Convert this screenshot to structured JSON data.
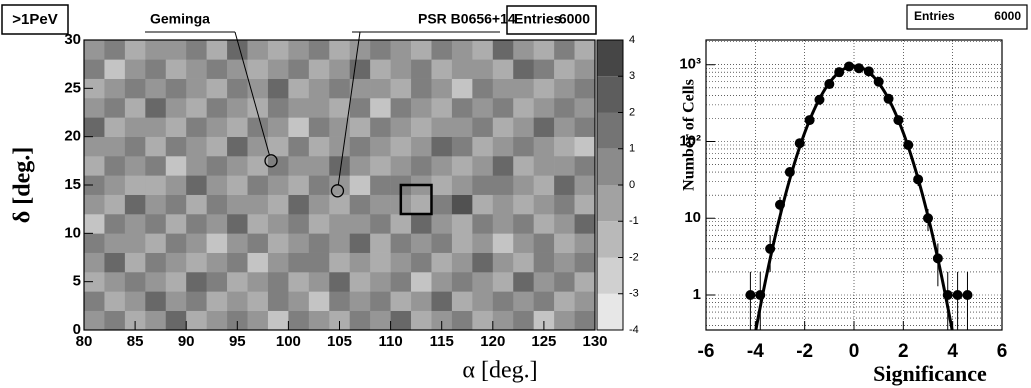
{
  "chart_data": [
    {
      "type": "heatmap",
      "label": ">1PeV",
      "stats": {
        "label": "Entries",
        "value": 6000
      },
      "xlabel": "α [deg.]",
      "ylabel": "δ [deg.]",
      "xlim": [
        80,
        130
      ],
      "xticks": [
        80,
        85,
        90,
        95,
        100,
        105,
        110,
        115,
        120,
        125,
        130
      ],
      "ylim": [
        0,
        30
      ],
      "yticks": [
        0,
        5,
        10,
        15,
        20,
        25,
        30
      ],
      "zlim": [
        -4,
        4
      ],
      "zticks": [
        -4,
        -3,
        -2,
        -1,
        0,
        1,
        2,
        3,
        4
      ],
      "colors": {
        "low": "#f2f2f2",
        "high": "#3a3a3a"
      },
      "annotations": [
        {
          "text": "Geminga",
          "x": 98.3,
          "y": 17.5
        },
        {
          "text": "PSR B0656+14",
          "x": 104.8,
          "y": 14.4
        }
      ],
      "region": {
        "x": [
          111,
          114
        ],
        "y": [
          12,
          15
        ]
      },
      "z": [
        [
          0,
          1,
          -1,
          0,
          2,
          -1,
          0,
          1,
          0,
          -2,
          1,
          0,
          -1,
          1,
          0,
          2,
          -1,
          0,
          1,
          -1,
          0,
          1,
          -2,
          0,
          1
        ],
        [
          1,
          -1,
          0,
          2,
          0,
          1,
          -1,
          0,
          -1,
          1,
          0,
          -2,
          1,
          0,
          1,
          -1,
          0,
          2,
          -1,
          0,
          1,
          0,
          1,
          -1,
          0
        ],
        [
          -1,
          0,
          1,
          0,
          -1,
          2,
          1,
          -1,
          0,
          1,
          -1,
          0,
          2,
          -1,
          0,
          1,
          -2,
          0,
          1,
          0,
          -1,
          2,
          0,
          1,
          -1
        ],
        [
          0,
          2,
          -1,
          1,
          0,
          -1,
          0,
          1,
          -2,
          0,
          1,
          1,
          -1,
          0,
          -1,
          0,
          1,
          -1,
          0,
          2,
          0,
          -1,
          1,
          0,
          1
        ],
        [
          1,
          0,
          0,
          -1,
          1,
          0,
          -2,
          0,
          1,
          -1,
          0,
          1,
          0,
          2,
          -1,
          1,
          0,
          1,
          -1,
          0,
          -2,
          0,
          1,
          -1,
          0
        ],
        [
          -2,
          1,
          0,
          1,
          -1,
          1,
          0,
          2,
          -1,
          0,
          1,
          -1,
          0,
          0,
          1,
          -1,
          2,
          0,
          -1,
          1,
          0,
          1,
          -1,
          0,
          2
        ],
        [
          0,
          -1,
          2,
          0,
          1,
          -1,
          1,
          0,
          0,
          -1,
          2,
          0,
          -1,
          1,
          0,
          0,
          -1,
          1,
          3,
          -1,
          0,
          -1,
          0,
          1,
          -1
        ],
        [
          1,
          0,
          -1,
          -1,
          0,
          2,
          0,
          -1,
          1,
          0,
          -1,
          1,
          0,
          -2,
          1,
          1,
          0,
          -1,
          0,
          1,
          1,
          0,
          -1,
          2,
          0
        ],
        [
          -1,
          1,
          0,
          1,
          -2,
          0,
          1,
          0,
          -1,
          1,
          0,
          0,
          2,
          0,
          -1,
          0,
          1,
          0,
          -1,
          0,
          2,
          -1,
          0,
          0,
          1
        ],
        [
          0,
          0,
          1,
          -1,
          1,
          0,
          -1,
          2,
          0,
          -1,
          1,
          -1,
          0,
          1,
          0,
          -1,
          0,
          2,
          1,
          -1,
          0,
          1,
          0,
          -1,
          -2
        ],
        [
          2,
          -1,
          0,
          0,
          -1,
          1,
          0,
          -1,
          1,
          0,
          -2,
          1,
          0,
          -1,
          1,
          0,
          -1,
          0,
          0,
          1,
          -1,
          0,
          2,
          0,
          1
        ],
        [
          0,
          1,
          -1,
          2,
          0,
          -1,
          1,
          0,
          -1,
          1,
          0,
          0,
          -1,
          1,
          -2,
          1,
          0,
          -1,
          1,
          0,
          1,
          -1,
          0,
          1,
          0
        ],
        [
          -1,
          0,
          1,
          0,
          1,
          0,
          -1,
          1,
          0,
          2,
          -1,
          0,
          1,
          0,
          0,
          -1,
          1,
          0,
          -2,
          1,
          0,
          0,
          -1,
          0,
          1
        ],
        [
          1,
          -2,
          0,
          1,
          -1,
          0,
          1,
          0,
          -1,
          0,
          1,
          -1,
          0,
          2,
          -1,
          0,
          1,
          -1,
          0,
          0,
          -1,
          2,
          1,
          -1,
          0
        ],
        [
          0,
          1,
          -1,
          0,
          0,
          1,
          -1,
          2,
          0,
          -1,
          0,
          1,
          -1,
          0,
          1,
          0,
          -1,
          1,
          0,
          -1,
          2,
          0,
          -1,
          1,
          -1
        ]
      ]
    },
    {
      "type": "points",
      "stats": {
        "label": "Entries",
        "value": 6000
      },
      "xlabel": "Significance",
      "ylabel": "Number of Cells",
      "xlim": [
        -6,
        6
      ],
      "xticks": [
        -6,
        -4,
        -2,
        0,
        2,
        4,
        6
      ],
      "ylim": [
        0.35,
        2100
      ],
      "ylog": true,
      "yticks": [
        1,
        10,
        {
          "value": 100,
          "label": "10²"
        },
        {
          "value": 1000,
          "label": "10³"
        }
      ],
      "grid": true,
      "color": "#000000",
      "x": [
        -4.2,
        -3.8,
        -3.4,
        -3.0,
        -2.6,
        -2.2,
        -1.8,
        -1.4,
        -1.0,
        -0.6,
        -0.2,
        0.2,
        0.6,
        1.0,
        1.4,
        1.8,
        2.2,
        2.6,
        3.0,
        3.4,
        3.8,
        4.2,
        4.6
      ],
      "values": [
        1,
        1,
        4,
        15,
        40,
        95,
        190,
        350,
        560,
        800,
        950,
        900,
        820,
        600,
        360,
        190,
        90,
        32,
        10,
        3,
        1,
        1,
        1
      ],
      "errors": [
        1,
        1,
        2,
        3.9,
        6.3,
        9.7,
        13.8,
        18.7,
        23.7,
        28.3,
        30.8,
        30,
        28.6,
        24.5,
        19,
        13.8,
        9.5,
        5.7,
        3.2,
        1.7,
        1,
        1,
        1
      ],
      "fit": {
        "amplitude": 957,
        "mean": 0,
        "sigma": 1
      }
    }
  ]
}
